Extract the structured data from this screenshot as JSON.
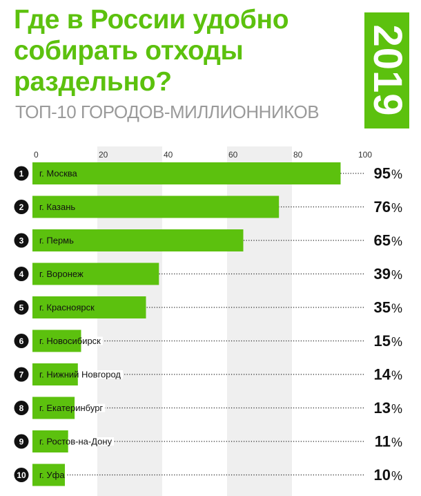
{
  "header": {
    "title": "Где в России удобно собирать отходы раздельно?",
    "subtitle": "ТОП-10 ГОРОДОВ-МИЛЛИОННИКОВ",
    "year": "2019"
  },
  "colors": {
    "accent": "#5cc10e",
    "band": "#efefef",
    "subtitle": "#9a9a9a",
    "text": "#111111"
  },
  "chart_data": {
    "type": "bar",
    "orientation": "horizontal",
    "ranks": [
      "1",
      "2",
      "3",
      "4",
      "5",
      "6",
      "7",
      "8",
      "9",
      "10"
    ],
    "categories": [
      "г. Москва",
      "г. Казань",
      "г. Пермь",
      "г. Воронеж",
      "г. Красноярск",
      "г. Новосибирск",
      "г. Нижний Новгород",
      "г. Екатеринбург",
      "г. Ростов-на-Дону",
      "г. Уфа"
    ],
    "values": [
      95,
      76,
      65,
      39,
      35,
      15,
      14,
      13,
      11,
      10
    ],
    "value_suffix": "%",
    "xlim": [
      0,
      100
    ],
    "xticks": [
      0,
      20,
      40,
      60,
      80,
      100
    ],
    "grid": "alternating-bands",
    "title": "Где в России удобно собирать отходы раздельно?",
    "subtitle": "ТОП-10 ГОРОДОВ-МИЛЛИОННИКОВ"
  }
}
